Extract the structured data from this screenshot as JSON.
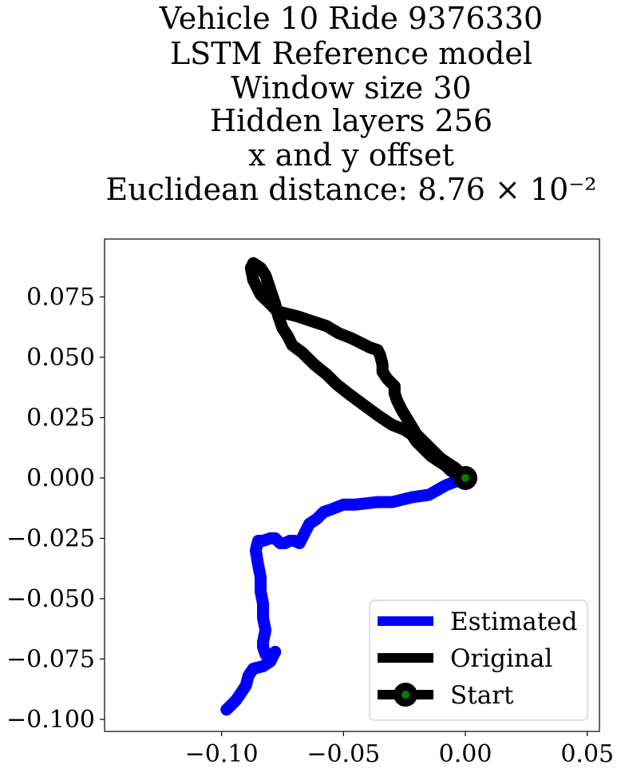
{
  "chart_data": {
    "type": "line",
    "title_lines": [
      "Vehicle 10 Ride 9376330",
      "LSTM Reference model",
      "Window size 30",
      "Hidden layers 256",
      "x and y offset",
      "Euclidean distance: 8.76 × 10⁻²"
    ],
    "xlabel": "",
    "ylabel": "",
    "xlim": [
      -0.148,
      0.055
    ],
    "ylim": [
      -0.105,
      0.099
    ],
    "x_ticks": [
      -0.1,
      -0.05,
      0.0,
      0.05
    ],
    "x_tick_labels": [
      "−0.10",
      "−0.05",
      "0.00",
      "0.05"
    ],
    "y_ticks": [
      0.075,
      0.05,
      0.025,
      0.0,
      -0.025,
      -0.05,
      -0.075,
      -0.1
    ],
    "y_tick_labels": [
      "0.075",
      "0.050",
      "0.025",
      "0.000",
      "−0.025",
      "−0.050",
      "−0.075",
      "−0.100"
    ],
    "grid": false,
    "legend_position": "lower-right",
    "series": [
      {
        "name": "Estimated",
        "color": "#0000ff",
        "x": [
          0.0,
          -0.008,
          -0.015,
          -0.022,
          -0.03,
          -0.036,
          -0.045,
          -0.05,
          -0.055,
          -0.058,
          -0.061,
          -0.064,
          -0.066,
          -0.068,
          -0.07,
          -0.072,
          -0.074,
          -0.076,
          -0.077,
          -0.078,
          -0.08,
          -0.083,
          -0.085,
          -0.086,
          -0.085,
          -0.084,
          -0.084,
          -0.083,
          -0.083,
          -0.082,
          -0.083,
          -0.083,
          -0.082,
          -0.081,
          -0.079,
          -0.078,
          -0.08,
          -0.083,
          -0.087,
          -0.089,
          -0.09,
          -0.092,
          -0.094,
          -0.096,
          -0.098
        ],
        "y": [
          0.0,
          -0.003,
          -0.007,
          -0.008,
          -0.01,
          -0.01,
          -0.011,
          -0.011,
          -0.013,
          -0.014,
          -0.017,
          -0.019,
          -0.023,
          -0.027,
          -0.026,
          -0.026,
          -0.027,
          -0.027,
          -0.026,
          -0.025,
          -0.025,
          -0.026,
          -0.026,
          -0.03,
          -0.036,
          -0.041,
          -0.047,
          -0.052,
          -0.058,
          -0.063,
          -0.068,
          -0.07,
          -0.073,
          -0.074,
          -0.073,
          -0.072,
          -0.076,
          -0.078,
          -0.079,
          -0.082,
          -0.086,
          -0.089,
          -0.092,
          -0.094,
          -0.096
        ]
      },
      {
        "name": "Original",
        "color": "#000000",
        "x": [
          0.0,
          -0.004,
          -0.01,
          -0.015,
          -0.02,
          -0.023,
          -0.026,
          -0.028,
          -0.029,
          -0.029,
          -0.032,
          -0.034,
          -0.034,
          -0.035,
          -0.036,
          -0.039,
          -0.043,
          -0.047,
          -0.052,
          -0.057,
          -0.06,
          -0.063,
          -0.066,
          -0.069,
          -0.073,
          -0.077,
          -0.08,
          -0.084,
          -0.087,
          -0.088,
          -0.087,
          -0.084,
          -0.082,
          -0.08,
          -0.078,
          -0.077,
          -0.076,
          -0.075,
          -0.073,
          -0.071,
          -0.067,
          -0.062,
          -0.057,
          -0.053,
          -0.048,
          -0.044,
          -0.04,
          -0.036,
          -0.033,
          -0.03,
          -0.025,
          -0.022,
          -0.02,
          -0.017,
          -0.014,
          -0.011,
          -0.008,
          -0.006,
          -0.003,
          0.0
        ],
        "y": [
          0.0,
          0.004,
          0.008,
          0.013,
          0.018,
          0.023,
          0.028,
          0.032,
          0.035,
          0.038,
          0.041,
          0.044,
          0.047,
          0.051,
          0.053,
          0.054,
          0.056,
          0.058,
          0.06,
          0.063,
          0.064,
          0.065,
          0.066,
          0.067,
          0.068,
          0.069,
          0.072,
          0.076,
          0.082,
          0.087,
          0.089,
          0.087,
          0.084,
          0.078,
          0.072,
          0.068,
          0.065,
          0.062,
          0.059,
          0.055,
          0.052,
          0.047,
          0.043,
          0.039,
          0.035,
          0.032,
          0.029,
          0.026,
          0.024,
          0.022,
          0.02,
          0.018,
          0.015,
          0.012,
          0.009,
          0.007,
          0.005,
          0.003,
          0.001,
          0.0
        ]
      }
    ],
    "start_point": {
      "name": "Start",
      "x": 0.0,
      "y": 0.0,
      "outer_color": "#000000",
      "inner_color": "#008000"
    }
  }
}
